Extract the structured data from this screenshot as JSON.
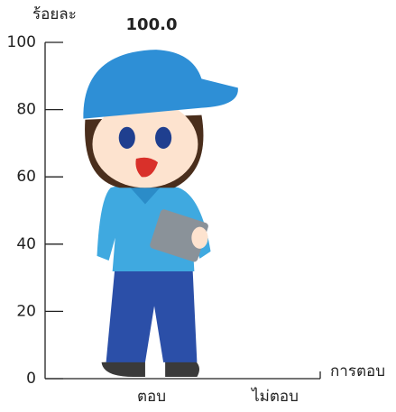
{
  "chart_data": {
    "type": "bar",
    "y_label": "ร้อยละ",
    "x_label": "การตอบ",
    "categories": [
      "ตอบ",
      "ไม่ตอบ"
    ],
    "values": [
      100,
      0
    ],
    "value_labels": [
      "100.0",
      null
    ],
    "ylim": [
      0,
      100
    ],
    "yticks": [
      0,
      20,
      40,
      60,
      80,
      100
    ]
  }
}
